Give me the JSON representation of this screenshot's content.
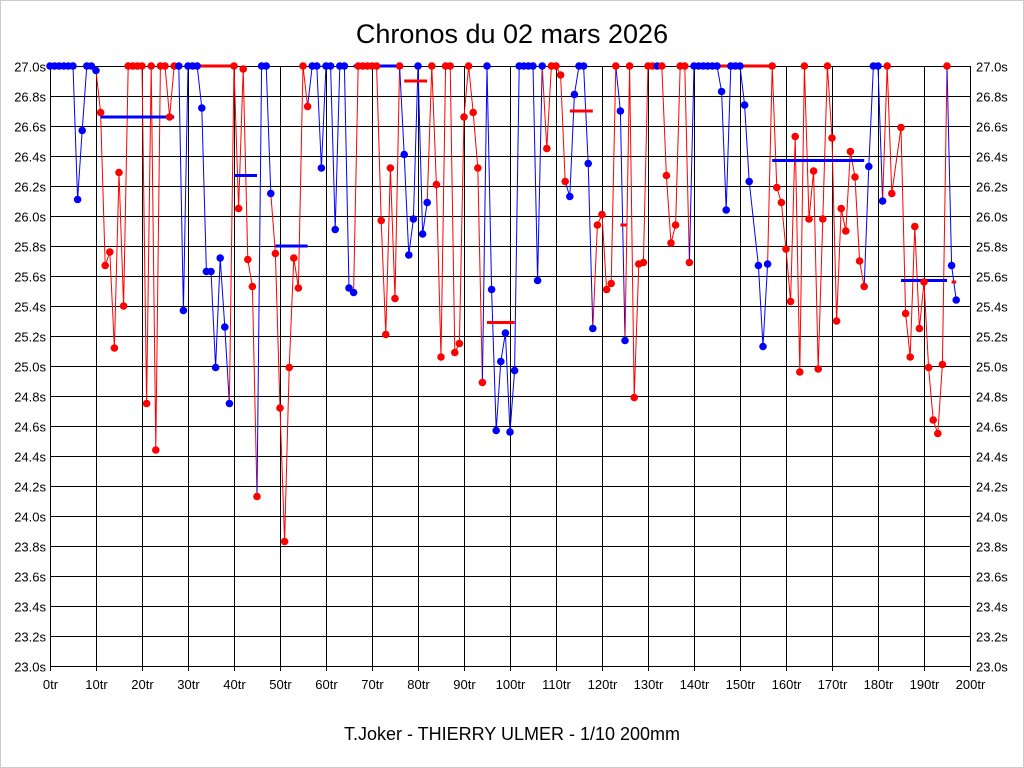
{
  "chart_data": {
    "type": "line",
    "title": "Chronos du 02 mars 2026",
    "footer": "T.Joker - THIERRY ULMER - 1/10 200mm",
    "xlabel": "",
    "ylabel": "",
    "xlim": [
      0,
      200
    ],
    "ylim": [
      23.0,
      27.0
    ],
    "grid": true,
    "x_ticks": [
      0,
      10,
      20,
      30,
      40,
      50,
      60,
      70,
      80,
      90,
      100,
      110,
      120,
      130,
      140,
      150,
      160,
      170,
      180,
      190,
      200
    ],
    "x_tick_labels": [
      "0tr",
      "10tr",
      "20tr",
      "30tr",
      "40tr",
      "50tr",
      "60tr",
      "70tr",
      "80tr",
      "90tr",
      "100tr",
      "110tr",
      "120tr",
      "130tr",
      "140tr",
      "150tr",
      "160tr",
      "170tr",
      "180tr",
      "190tr",
      "200tr"
    ],
    "y_ticks": [
      23.0,
      23.2,
      23.4,
      23.6,
      23.8,
      24.0,
      24.2,
      24.4,
      24.6,
      24.8,
      25.0,
      25.2,
      25.4,
      25.6,
      25.8,
      26.0,
      26.2,
      26.4,
      26.6,
      26.8,
      27.0
    ],
    "y_tick_labels": [
      "23.0s",
      "23.2s",
      "23.4s",
      "23.6s",
      "23.8s",
      "24.0s",
      "24.2s",
      "24.4s",
      "24.6s",
      "24.8s",
      "25.0s",
      "25.2s",
      "25.4s",
      "25.6s",
      "25.8s",
      "26.0s",
      "26.2s",
      "26.4s",
      "26.6s",
      "26.8s",
      "27.0s"
    ],
    "colors": {
      "red": "#ff0000",
      "blue": "#0000ff"
    },
    "segments": [
      {
        "color": "blue",
        "points": [
          [
            0,
            27
          ],
          [
            1,
            27
          ],
          [
            2,
            27
          ],
          [
            3,
            27
          ],
          [
            4,
            27
          ],
          [
            5,
            27
          ],
          [
            6,
            26.11
          ],
          [
            7,
            26.57
          ],
          [
            8,
            27
          ],
          [
            9,
            27
          ],
          [
            10,
            26.97
          ]
        ]
      },
      {
        "color": "red",
        "points": [
          [
            11,
            26.69
          ],
          [
            12,
            25.67
          ],
          [
            13,
            25.76
          ],
          [
            14,
            25.12
          ],
          [
            15,
            26.29
          ],
          [
            16,
            25.4
          ],
          [
            17,
            27
          ],
          [
            18,
            27
          ],
          [
            19,
            27
          ],
          [
            20,
            27
          ],
          [
            21,
            24.75
          ],
          [
            22,
            27
          ],
          [
            23,
            24.44
          ],
          [
            24,
            27
          ],
          [
            25,
            27
          ],
          [
            26,
            26.66
          ],
          [
            27,
            27
          ]
        ]
      },
      {
        "color": "blue",
        "points": [
          [
            28,
            27
          ],
          [
            29,
            25.37
          ],
          [
            30,
            27
          ],
          [
            31,
            27
          ],
          [
            32,
            27
          ],
          [
            33,
            26.72
          ],
          [
            34,
            25.63
          ],
          [
            35,
            25.63
          ],
          [
            36,
            24.99
          ],
          [
            37,
            25.72
          ],
          [
            38,
            25.26
          ],
          [
            39,
            24.75
          ]
        ]
      },
      {
        "color": "red",
        "points": [
          [
            40,
            27
          ],
          [
            41,
            26.05
          ],
          [
            42,
            26.98
          ],
          [
            43,
            25.71
          ],
          [
            44,
            25.53
          ],
          [
            45,
            24.13
          ]
        ]
      },
      {
        "color": "blue",
        "points": [
          [
            46,
            27
          ],
          [
            47,
            27
          ],
          [
            48,
            26.15
          ]
        ]
      },
      {
        "color": "red",
        "points": [
          [
            49,
            25.75
          ],
          [
            50,
            24.72
          ],
          [
            51,
            23.83
          ],
          [
            52,
            24.99
          ],
          [
            53,
            25.72
          ],
          [
            54,
            25.52
          ],
          [
            55,
            27
          ],
          [
            56,
            26.73
          ]
        ]
      },
      {
        "color": "blue",
        "points": [
          [
            57,
            27
          ],
          [
            58,
            27
          ],
          [
            59,
            26.32
          ],
          [
            60,
            27
          ],
          [
            61,
            27
          ],
          [
            62,
            25.91
          ],
          [
            63,
            27
          ],
          [
            64,
            27
          ],
          [
            65,
            25.52
          ],
          [
            66,
            25.49
          ]
        ]
      },
      {
        "color": "red",
        "points": [
          [
            67,
            27
          ],
          [
            68,
            27
          ],
          [
            69,
            27
          ],
          [
            70,
            27
          ],
          [
            71,
            27
          ],
          [
            72,
            25.97
          ],
          [
            73,
            25.21
          ],
          [
            74,
            26.32
          ],
          [
            75,
            25.45
          ],
          [
            76,
            27
          ]
        ]
      },
      {
        "color": "blue",
        "points": [
          [
            77,
            26.41
          ],
          [
            78,
            25.74
          ],
          [
            79,
            25.98
          ],
          [
            80,
            27
          ],
          [
            81,
            25.88
          ],
          [
            82,
            26.09
          ]
        ]
      },
      {
        "color": "red",
        "points": [
          [
            83,
            27
          ],
          [
            84,
            26.21
          ],
          [
            85,
            25.06
          ],
          [
            86,
            27
          ],
          [
            87,
            27
          ],
          [
            88,
            25.09
          ],
          [
            89,
            25.15
          ],
          [
            90,
            26.66
          ],
          [
            91,
            27
          ],
          [
            92,
            26.69
          ],
          [
            93,
            26.32
          ],
          [
            94,
            24.89
          ]
        ]
      },
      {
        "color": "blue",
        "points": [
          [
            95,
            27
          ],
          [
            96,
            25.51
          ],
          [
            97,
            24.57
          ],
          [
            98,
            25.03
          ],
          [
            99,
            25.22
          ],
          [
            100,
            24.56
          ],
          [
            101,
            24.97
          ],
          [
            102,
            27
          ],
          [
            103,
            27
          ],
          [
            104,
            27
          ],
          [
            105,
            27
          ],
          [
            106,
            25.57
          ],
          [
            107,
            27
          ]
        ]
      },
      {
        "color": "red",
        "points": [
          [
            108,
            26.45
          ],
          [
            109,
            27
          ],
          [
            110,
            27
          ],
          [
            111,
            26.94
          ],
          [
            112,
            26.23
          ]
        ]
      },
      {
        "color": "blue",
        "points": [
          [
            113,
            26.13
          ],
          [
            114,
            26.81
          ],
          [
            115,
            27
          ],
          [
            116,
            27
          ],
          [
            117,
            26.35
          ],
          [
            118,
            25.25
          ]
        ]
      },
      {
        "color": "red",
        "points": [
          [
            119,
            25.94
          ],
          [
            120,
            26.01
          ],
          [
            121,
            25.51
          ],
          [
            122,
            25.55
          ],
          [
            123,
            27
          ]
        ]
      },
      {
        "color": "blue",
        "points": [
          [
            124,
            26.7
          ],
          [
            125,
            25.17
          ]
        ]
      },
      {
        "color": "red",
        "points": [
          [
            126,
            27
          ],
          [
            127,
            24.79
          ],
          [
            128,
            25.68
          ],
          [
            129,
            25.69
          ],
          [
            130,
            27
          ],
          [
            131,
            27
          ]
        ]
      },
      {
        "color": "blue",
        "points": [
          [
            132,
            27
          ]
        ]
      },
      {
        "color": "red",
        "points": [
          [
            133,
            27
          ],
          [
            134,
            26.27
          ],
          [
            135,
            25.82
          ],
          [
            136,
            25.94
          ],
          [
            137,
            27
          ],
          [
            138,
            27
          ],
          [
            139,
            25.69
          ]
        ]
      },
      {
        "color": "blue",
        "points": [
          [
            140,
            27
          ],
          [
            141,
            27
          ],
          [
            142,
            27
          ],
          [
            143,
            27
          ],
          [
            144,
            27
          ],
          [
            145,
            27
          ],
          [
            146,
            26.83
          ],
          [
            147,
            26.04
          ],
          [
            148,
            27
          ],
          [
            149,
            27
          ],
          [
            150,
            27
          ],
          [
            151,
            26.74
          ],
          [
            152,
            26.23
          ],
          [
            154,
            25.67
          ],
          [
            155,
            25.13
          ],
          [
            156,
            25.68
          ]
        ]
      },
      {
        "color": "red",
        "points": [
          [
            157,
            27
          ],
          [
            158,
            26.19
          ],
          [
            159,
            26.09
          ],
          [
            160,
            25.78
          ],
          [
            161,
            25.43
          ],
          [
            162,
            26.53
          ],
          [
            163,
            24.96
          ],
          [
            164,
            27
          ],
          [
            165,
            25.98
          ],
          [
            166,
            26.3
          ],
          [
            167,
            24.98
          ],
          [
            168,
            25.98
          ],
          [
            169,
            27
          ],
          [
            170,
            26.52
          ],
          [
            171,
            25.3
          ],
          [
            172,
            26.05
          ],
          [
            173,
            25.9
          ],
          [
            174,
            26.43
          ],
          [
            175,
            26.26
          ],
          [
            176,
            25.7
          ],
          [
            177,
            25.53
          ]
        ]
      },
      {
        "color": "blue",
        "points": [
          [
            178,
            26.33
          ],
          [
            179,
            27
          ],
          [
            180,
            27
          ],
          [
            181,
            26.1
          ]
        ]
      },
      {
        "color": "red",
        "points": [
          [
            182,
            27
          ],
          [
            183,
            26.15
          ],
          [
            185,
            26.59
          ],
          [
            186,
            25.35
          ],
          [
            187,
            25.06
          ],
          [
            188,
            25.93
          ],
          [
            189,
            25.25
          ],
          [
            190,
            25.56
          ],
          [
            191,
            24.99
          ],
          [
            192,
            24.64
          ],
          [
            193,
            24.55
          ],
          [
            194,
            25.01
          ],
          [
            195,
            27
          ]
        ]
      },
      {
        "color": "blue",
        "points": [
          [
            196,
            25.67
          ],
          [
            197,
            25.44
          ]
        ]
      }
    ],
    "averages": [
      {
        "color": "blue",
        "from": 11,
        "to": 27,
        "value": 26.66
      },
      {
        "color": "red",
        "from": 32,
        "to": 40,
        "value": 27.0
      },
      {
        "color": "blue",
        "from": 40,
        "to": 45,
        "value": 26.27
      },
      {
        "color": "blue",
        "from": 49,
        "to": 56,
        "value": 25.8
      },
      {
        "color": "blue",
        "from": 66,
        "to": 76,
        "value": 27.0
      },
      {
        "color": "red",
        "from": 77,
        "to": 82,
        "value": 26.9
      },
      {
        "color": "red",
        "from": 95,
        "to": 101,
        "value": 25.29
      },
      {
        "color": "red",
        "from": 113,
        "to": 118,
        "value": 26.7
      },
      {
        "color": "red",
        "from": 124,
        "to": 125.3,
        "value": 25.94
      },
      {
        "color": "red",
        "from": 143,
        "to": 157,
        "value": 27.0
      },
      {
        "color": "blue",
        "from": 157,
        "to": 177,
        "value": 26.37
      },
      {
        "color": "blue",
        "from": 185,
        "to": 195,
        "value": 25.57
      },
      {
        "color": "red",
        "from": 196,
        "to": 197,
        "value": 25.56
      }
    ]
  }
}
